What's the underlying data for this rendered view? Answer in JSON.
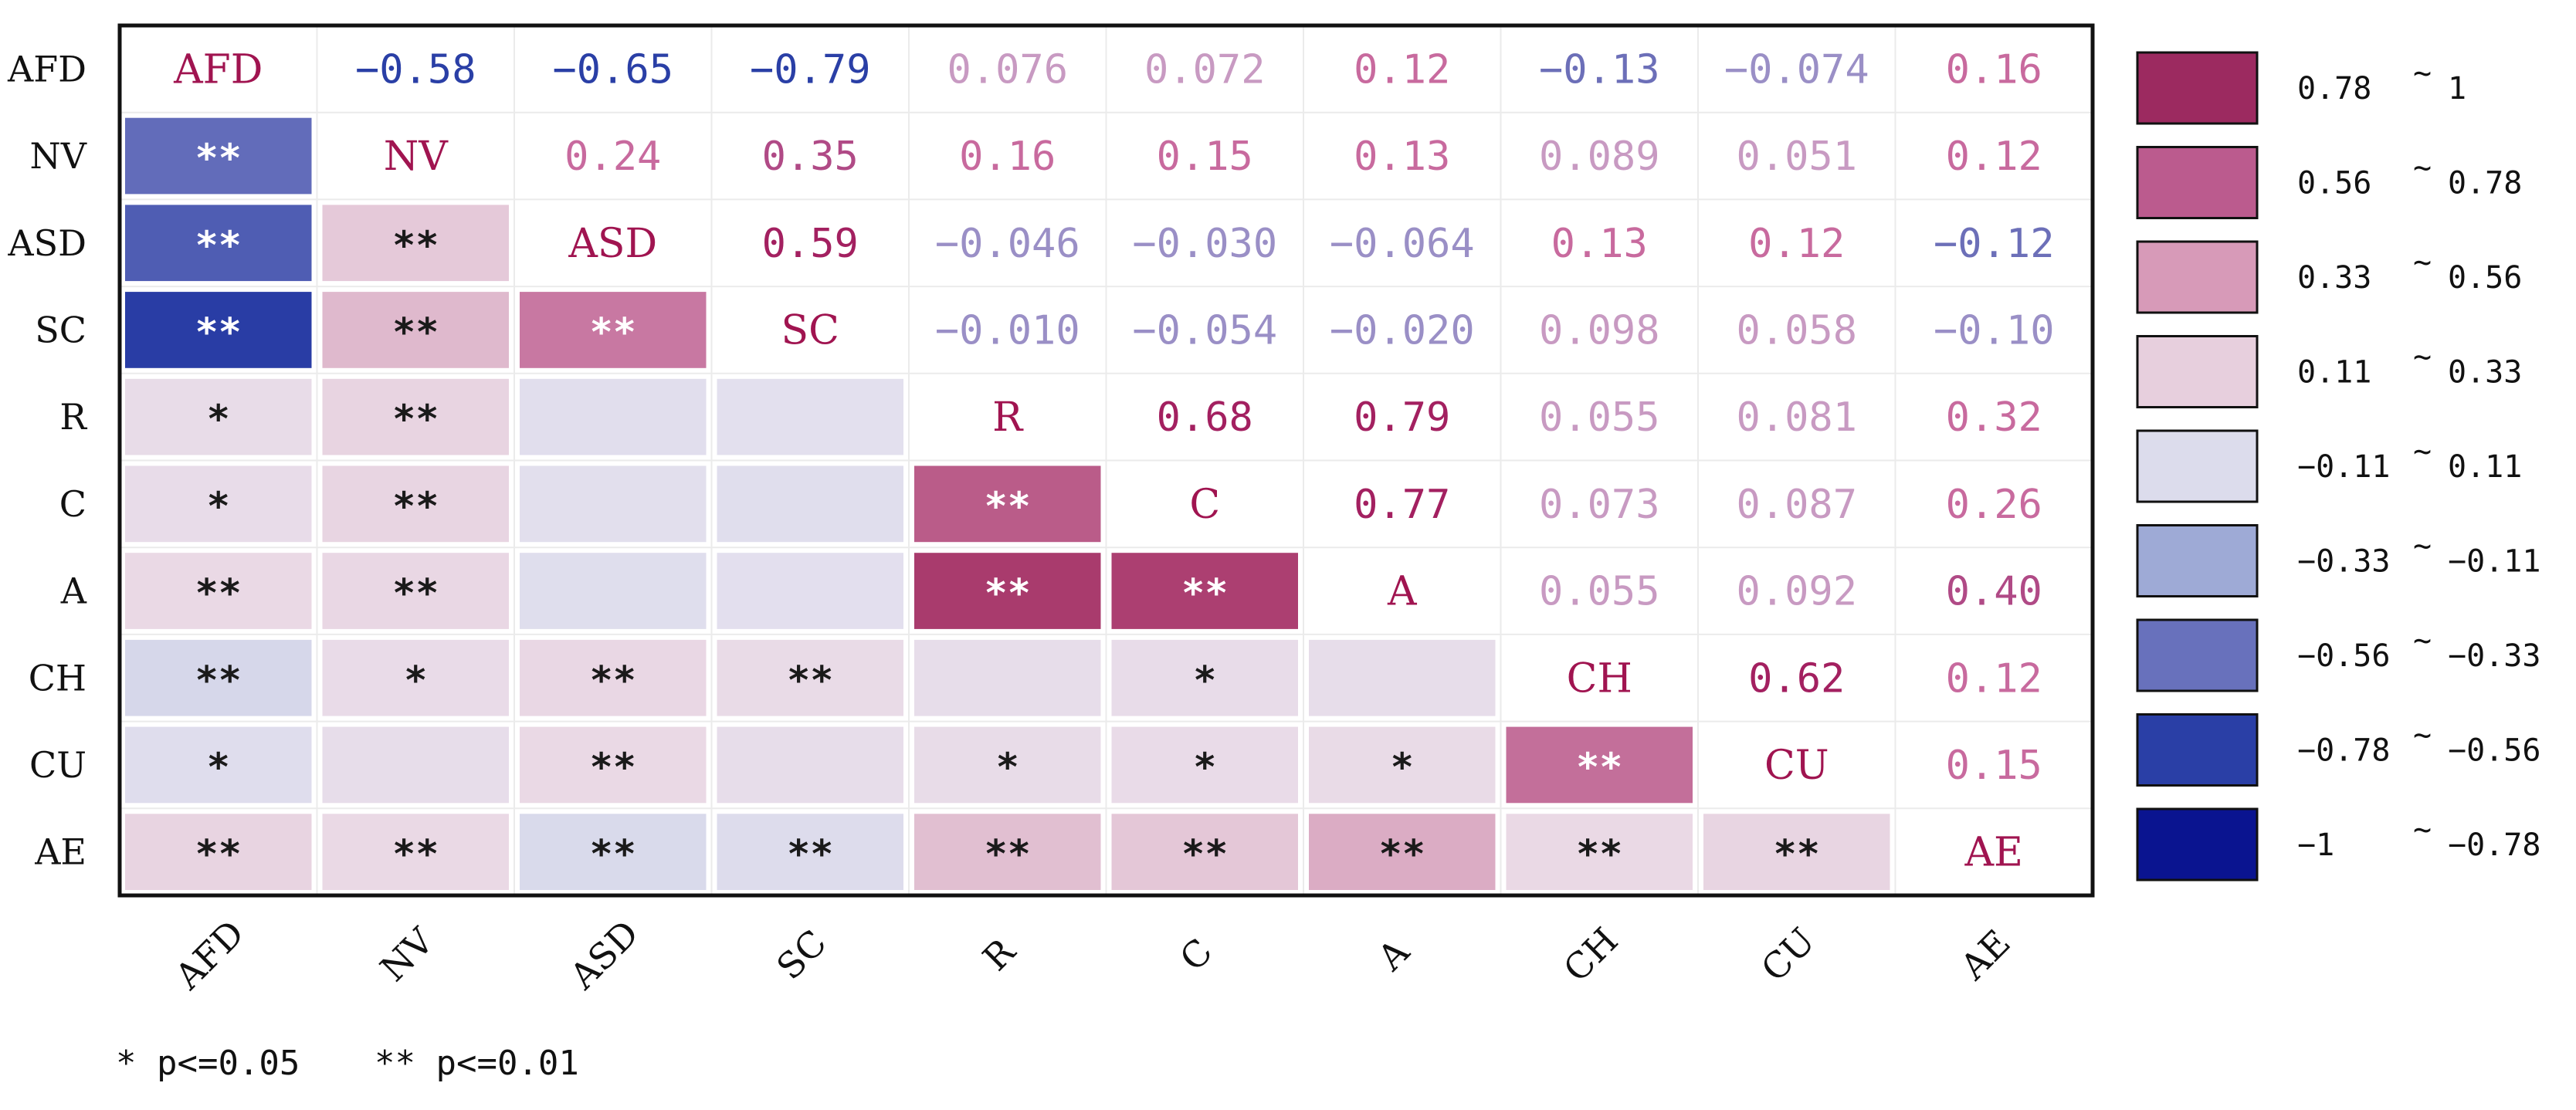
{
  "chart_data": {
    "type": "heatmap",
    "variables": [
      "AFD",
      "NV",
      "ASD",
      "SC",
      "R",
      "C",
      "A",
      "CH",
      "CU",
      "AE"
    ],
    "upper_labels": [
      [
        "AFD",
        "−0.58",
        "−0.65",
        "−0.79",
        "0.076",
        "0.072",
        "0.12",
        "−0.13",
        "−0.074",
        "0.16"
      ],
      [
        "",
        "NV",
        "0.24",
        "0.35",
        "0.16",
        "0.15",
        "0.13",
        "0.089",
        "0.051",
        "0.12"
      ],
      [
        "",
        "",
        "ASD",
        "0.59",
        "−0.046",
        "−0.030",
        "−0.064",
        "0.13",
        "0.12",
        "−0.12"
      ],
      [
        "",
        "",
        "",
        "SC",
        "−0.010",
        "−0.054",
        "−0.020",
        "0.098",
        "0.058",
        "−0.10"
      ],
      [
        "",
        "",
        "",
        "",
        "R",
        "0.68",
        "0.79",
        "0.055",
        "0.081",
        "0.32"
      ],
      [
        "",
        "",
        "",
        "",
        "",
        "C",
        "0.77",
        "0.073",
        "0.087",
        "0.26"
      ],
      [
        "",
        "",
        "",
        "",
        "",
        "",
        "A",
        "0.055",
        "0.092",
        "0.40"
      ],
      [
        "",
        "",
        "",
        "",
        "",
        "",
        "",
        "CH",
        "0.62",
        "0.12"
      ],
      [
        "",
        "",
        "",
        "",
        "",
        "",
        "",
        "",
        "CU",
        "0.15"
      ],
      [
        "",
        "",
        "",
        "",
        "",
        "",
        "",
        "",
        "",
        "AE"
      ]
    ],
    "significance": [
      [
        "",
        "",
        "",
        "",
        "",
        "",
        "",
        "",
        "",
        ""
      ],
      [
        "**",
        "",
        "",
        "",
        "",
        "",
        "",
        "",
        "",
        ""
      ],
      [
        "**",
        "**",
        "",
        "",
        "",
        "",
        "",
        "",
        "",
        ""
      ],
      [
        "**",
        "**",
        "**",
        "",
        "",
        "",
        "",
        "",
        "",
        ""
      ],
      [
        "*",
        "**",
        "",
        "",
        "",
        "",
        "",
        "",
        "",
        ""
      ],
      [
        "*",
        "**",
        "",
        "",
        "**",
        "",
        "",
        "",
        "",
        ""
      ],
      [
        "**",
        "**",
        "",
        "",
        "**",
        "**",
        "",
        "",
        "",
        ""
      ],
      [
        "**",
        "*",
        "**",
        "**",
        "",
        "*",
        "",
        "",
        "",
        ""
      ],
      [
        "*",
        "",
        "**",
        "",
        "*",
        "*",
        "*",
        "**",
        "",
        ""
      ],
      [
        "**",
        "**",
        "**",
        "**",
        "**",
        "**",
        "**",
        "**",
        "**",
        ""
      ]
    ],
    "legend": {
      "entries": [
        {
          "low": "0.78",
          "high": "1",
          "color": "#9c2a60"
        },
        {
          "low": "0.56",
          "high": "0.78",
          "color": "#bb5b8e"
        },
        {
          "low": "0.33",
          "high": "0.56",
          "color": "#d79ab8"
        },
        {
          "low": "0.11",
          "high": "0.33",
          "color": "#e7cfdd"
        },
        {
          "low": "−0.11",
          "high": "0.11",
          "color": "#dcdcec"
        },
        {
          "low": "−0.33",
          "high": "−0.11",
          "color": "#9eaad6"
        },
        {
          "low": "−0.56",
          "high": "−0.33",
          "color": "#6871bc"
        },
        {
          "low": "−0.78",
          "high": "−0.56",
          "color": "#2a3fa6"
        },
        {
          "low": "−1",
          "high": "−0.78",
          "color": "#0a1490"
        }
      ],
      "separator": "~"
    },
    "footnote": {
      "single": "* p<=0.05",
      "double": "** p<=0.01"
    }
  }
}
